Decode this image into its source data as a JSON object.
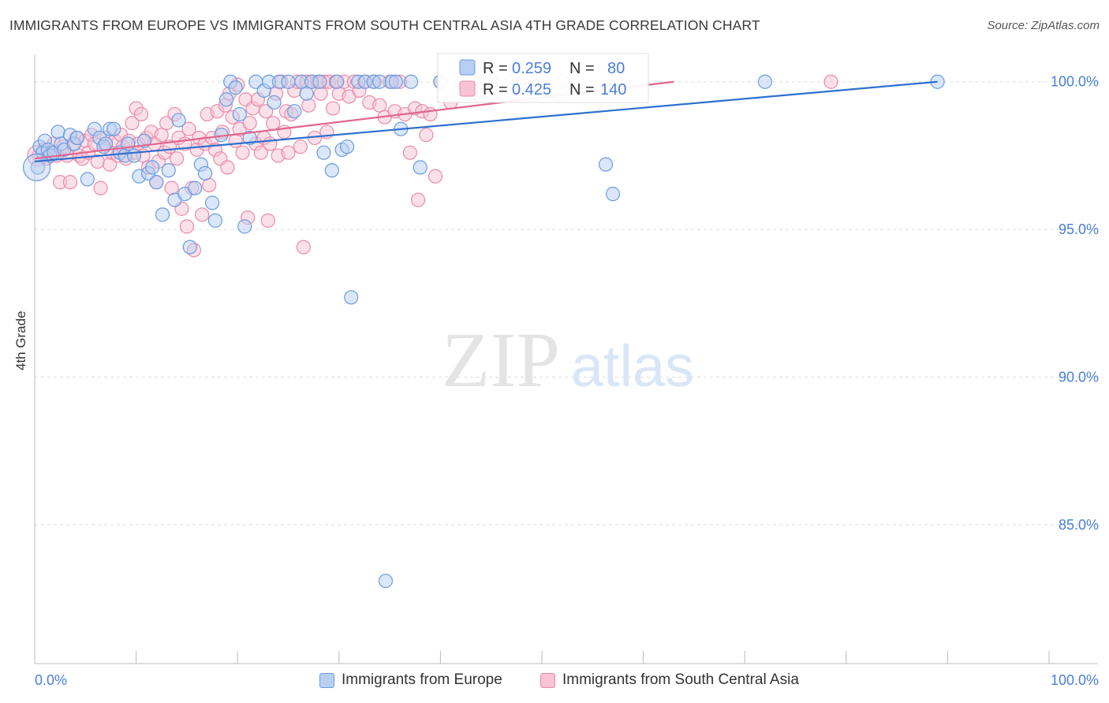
{
  "title": "IMMIGRANTS FROM EUROPE VS IMMIGRANTS FROM SOUTH CENTRAL ASIA 4TH GRADE CORRELATION CHART",
  "source": "Source: ZipAtlas.com",
  "watermark": {
    "zip": "ZIP",
    "atlas": "atlas"
  },
  "colors": {
    "blue": "#6a9be0",
    "blue_fill": "#b7cff2",
    "blue_line": "#2f6fcf",
    "pink": "#ec8aa8",
    "pink_fill": "#f6c4d4",
    "pink_line": "#e0668e",
    "axis_text": "#4a7fd4",
    "grid": "#dcdcdc"
  },
  "legend_stats": [
    {
      "r_label": "R =",
      "r_value": "0.259",
      "n_label": "N =",
      "n_value": "80"
    },
    {
      "r_label": "R =",
      "r_value": "0.425",
      "n_label": "N =",
      "n_value": "140"
    }
  ],
  "chart_data": {
    "type": "scatter",
    "title": "IMMIGRANTS FROM EUROPE VS IMMIGRANTS FROM SOUTH CENTRAL ASIA 4TH GRADE CORRELATION CHART",
    "xlabel": "",
    "ylabel": "4th Grade",
    "xlim": [
      0,
      100
    ],
    "ylim": [
      80.3,
      100.9
    ],
    "x_tick_labels": [
      "0.0%",
      "100.0%"
    ],
    "y_ticks": [
      85.0,
      90.0,
      95.0,
      100.0
    ],
    "y_tick_labels": [
      "85.0%",
      "90.0%",
      "95.0%",
      "100.0%"
    ],
    "grid": true,
    "legend_position": "top-center",
    "series": [
      {
        "name": "Immigrants from Europe",
        "r": 0.259,
        "n": 80,
        "trend": {
          "x": [
            0,
            89
          ],
          "y": [
            97.3,
            100.0
          ]
        },
        "points": [
          [
            0.3,
            97.1
          ],
          [
            0.5,
            97.8
          ],
          [
            0.8,
            97.6
          ],
          [
            1.0,
            98.0
          ],
          [
            1.3,
            97.7
          ],
          [
            1.5,
            97.5
          ],
          [
            1.9,
            97.6
          ],
          [
            2.3,
            98.3
          ],
          [
            2.6,
            97.9
          ],
          [
            2.9,
            97.7
          ],
          [
            3.5,
            98.2
          ],
          [
            3.9,
            97.9
          ],
          [
            4.2,
            98.1
          ],
          [
            5.2,
            96.7
          ],
          [
            5.9,
            98.4
          ],
          [
            6.4,
            98.1
          ],
          [
            6.8,
            97.8
          ],
          [
            7.0,
            97.9
          ],
          [
            7.4,
            98.4
          ],
          [
            7.8,
            98.4
          ],
          [
            8.4,
            97.6
          ],
          [
            8.9,
            97.5
          ],
          [
            9.2,
            97.9
          ],
          [
            9.8,
            97.5
          ],
          [
            10.3,
            96.8
          ],
          [
            10.8,
            98.0
          ],
          [
            11.2,
            96.9
          ],
          [
            11.6,
            97.1
          ],
          [
            12.0,
            96.6
          ],
          [
            12.6,
            95.5
          ],
          [
            13.2,
            97.0
          ],
          [
            13.8,
            96.0
          ],
          [
            14.2,
            98.7
          ],
          [
            14.8,
            96.2
          ],
          [
            15.3,
            94.4
          ],
          [
            15.8,
            96.4
          ],
          [
            16.4,
            97.2
          ],
          [
            16.8,
            96.9
          ],
          [
            17.5,
            95.9
          ],
          [
            17.8,
            95.3
          ],
          [
            18.4,
            98.2
          ],
          [
            18.9,
            99.4
          ],
          [
            19.3,
            100.0
          ],
          [
            19.8,
            99.8
          ],
          [
            20.2,
            98.9
          ],
          [
            20.7,
            95.1
          ],
          [
            21.2,
            98.1
          ],
          [
            21.8,
            100.0
          ],
          [
            22.6,
            99.7
          ],
          [
            23.1,
            100.0
          ],
          [
            23.6,
            99.3
          ],
          [
            24.1,
            100.0
          ],
          [
            25.0,
            100.0
          ],
          [
            25.6,
            99.0
          ],
          [
            26.3,
            100.0
          ],
          [
            26.8,
            99.6
          ],
          [
            27.3,
            100.0
          ],
          [
            28.1,
            100.0
          ],
          [
            28.5,
            97.6
          ],
          [
            29.3,
            97.0
          ],
          [
            29.8,
            100.0
          ],
          [
            30.3,
            97.7
          ],
          [
            30.8,
            97.8
          ],
          [
            31.2,
            92.7
          ],
          [
            31.9,
            100.0
          ],
          [
            32.6,
            100.0
          ],
          [
            33.4,
            100.0
          ],
          [
            34.0,
            100.0
          ],
          [
            34.6,
            83.1
          ],
          [
            35.2,
            100.0
          ],
          [
            35.6,
            100.0
          ],
          [
            36.1,
            98.4
          ],
          [
            37.1,
            100.0
          ],
          [
            38.0,
            97.1
          ],
          [
            40.0,
            100.0
          ],
          [
            45.0,
            100.0
          ],
          [
            56.3,
            97.2
          ],
          [
            57.0,
            96.2
          ],
          [
            72.0,
            100.0
          ],
          [
            89.0,
            100.0
          ]
        ]
      },
      {
        "name": "Immigrants from South Central Asia",
        "r": 0.425,
        "n": 140,
        "trend": {
          "x": [
            0,
            63
          ],
          "y": [
            97.4,
            100.0
          ]
        },
        "points": [
          [
            0.4,
            97.5
          ],
          [
            0.9,
            97.7
          ],
          [
            1.2,
            97.4
          ],
          [
            1.5,
            97.6
          ],
          [
            1.9,
            97.9
          ],
          [
            2.2,
            97.5
          ],
          [
            2.5,
            96.6
          ],
          [
            2.8,
            97.8
          ],
          [
            3.2,
            97.5
          ],
          [
            3.5,
            96.6
          ],
          [
            3.8,
            97.9
          ],
          [
            4.1,
            98.1
          ],
          [
            4.4,
            97.5
          ],
          [
            4.7,
            97.4
          ],
          [
            5.0,
            98.0
          ],
          [
            5.3,
            97.6
          ],
          [
            5.6,
            98.2
          ],
          [
            5.9,
            97.9
          ],
          [
            6.2,
            97.3
          ],
          [
            6.5,
            96.4
          ],
          [
            6.8,
            97.8
          ],
          [
            7.1,
            98.1
          ],
          [
            7.4,
            97.2
          ],
          [
            7.6,
            97.6
          ],
          [
            7.9,
            98.0
          ],
          [
            8.2,
            97.5
          ],
          [
            8.5,
            98.2
          ],
          [
            8.7,
            97.8
          ],
          [
            9.0,
            97.4
          ],
          [
            9.3,
            98.0
          ],
          [
            9.6,
            98.6
          ],
          [
            9.8,
            97.6
          ],
          [
            10.0,
            99.1
          ],
          [
            10.2,
            97.9
          ],
          [
            10.5,
            98.9
          ],
          [
            10.7,
            97.5
          ],
          [
            11.0,
            98.1
          ],
          [
            11.2,
            97.1
          ],
          [
            11.5,
            98.3
          ],
          [
            11.8,
            97.9
          ],
          [
            12.0,
            96.6
          ],
          [
            12.2,
            97.3
          ],
          [
            12.5,
            98.2
          ],
          [
            12.8,
            97.6
          ],
          [
            13.0,
            98.6
          ],
          [
            13.3,
            97.8
          ],
          [
            13.5,
            96.4
          ],
          [
            13.8,
            98.9
          ],
          [
            14.0,
            97.4
          ],
          [
            14.2,
            98.1
          ],
          [
            14.5,
            95.7
          ],
          [
            14.8,
            97.9
          ],
          [
            15.0,
            95.1
          ],
          [
            15.2,
            98.4
          ],
          [
            15.5,
            96.4
          ],
          [
            15.7,
            94.3
          ],
          [
            16.0,
            97.7
          ],
          [
            16.2,
            98.1
          ],
          [
            16.5,
            95.5
          ],
          [
            16.8,
            97.9
          ],
          [
            17.0,
            98.9
          ],
          [
            17.2,
            96.5
          ],
          [
            17.5,
            98.1
          ],
          [
            17.8,
            97.7
          ],
          [
            18.0,
            99.0
          ],
          [
            18.3,
            97.4
          ],
          [
            18.5,
            98.3
          ],
          [
            18.8,
            99.2
          ],
          [
            19.0,
            97.1
          ],
          [
            19.2,
            99.6
          ],
          [
            19.5,
            98.8
          ],
          [
            19.8,
            98.0
          ],
          [
            20.0,
            99.9
          ],
          [
            20.2,
            98.4
          ],
          [
            20.5,
            97.6
          ],
          [
            20.8,
            99.4
          ],
          [
            21.0,
            95.4
          ],
          [
            21.2,
            98.6
          ],
          [
            21.5,
            99.1
          ],
          [
            21.8,
            97.9
          ],
          [
            22.0,
            99.4
          ],
          [
            22.3,
            97.6
          ],
          [
            22.6,
            98.1
          ],
          [
            22.8,
            99.0
          ],
          [
            23.0,
            95.3
          ],
          [
            23.2,
            97.9
          ],
          [
            23.5,
            98.6
          ],
          [
            23.8,
            99.6
          ],
          [
            24.0,
            97.5
          ],
          [
            24.3,
            100.0
          ],
          [
            24.6,
            98.3
          ],
          [
            24.8,
            99.0
          ],
          [
            25.0,
            97.6
          ],
          [
            25.3,
            98.9
          ],
          [
            25.6,
            99.7
          ],
          [
            25.9,
            100.0
          ],
          [
            26.2,
            97.8
          ],
          [
            26.5,
            94.4
          ],
          [
            26.8,
            100.0
          ],
          [
            27.0,
            99.2
          ],
          [
            27.3,
            100.0
          ],
          [
            27.6,
            98.1
          ],
          [
            27.9,
            100.0
          ],
          [
            28.2,
            99.6
          ],
          [
            28.5,
            100.0
          ],
          [
            28.8,
            98.3
          ],
          [
            29.0,
            100.0
          ],
          [
            29.4,
            99.1
          ],
          [
            29.7,
            100.0
          ],
          [
            30.0,
            99.6
          ],
          [
            30.5,
            100.0
          ],
          [
            31.0,
            99.5
          ],
          [
            31.5,
            100.0
          ],
          [
            32.0,
            99.7
          ],
          [
            32.5,
            100.0
          ],
          [
            33.0,
            99.3
          ],
          [
            33.5,
            100.0
          ],
          [
            34.0,
            99.2
          ],
          [
            34.5,
            98.8
          ],
          [
            35.0,
            100.0
          ],
          [
            35.5,
            99.0
          ],
          [
            36.0,
            100.0
          ],
          [
            36.5,
            98.9
          ],
          [
            37.0,
            97.6
          ],
          [
            37.5,
            99.1
          ],
          [
            37.8,
            96.0
          ],
          [
            38.2,
            99.0
          ],
          [
            38.6,
            98.2
          ],
          [
            39.0,
            98.9
          ],
          [
            39.5,
            96.8
          ],
          [
            40.0,
            100.0
          ],
          [
            41.0,
            99.3
          ],
          [
            42.0,
            100.0
          ],
          [
            43.0,
            99.6
          ],
          [
            44.0,
            100.0
          ],
          [
            45.0,
            99.8
          ],
          [
            47.0,
            100.0
          ],
          [
            49.0,
            100.0
          ],
          [
            52.0,
            100.0
          ],
          [
            78.5,
            100.0
          ]
        ]
      }
    ]
  },
  "legend_bottom": [
    {
      "label": "Immigrants from Europe"
    },
    {
      "label": "Immigrants from South Central Asia"
    }
  ]
}
